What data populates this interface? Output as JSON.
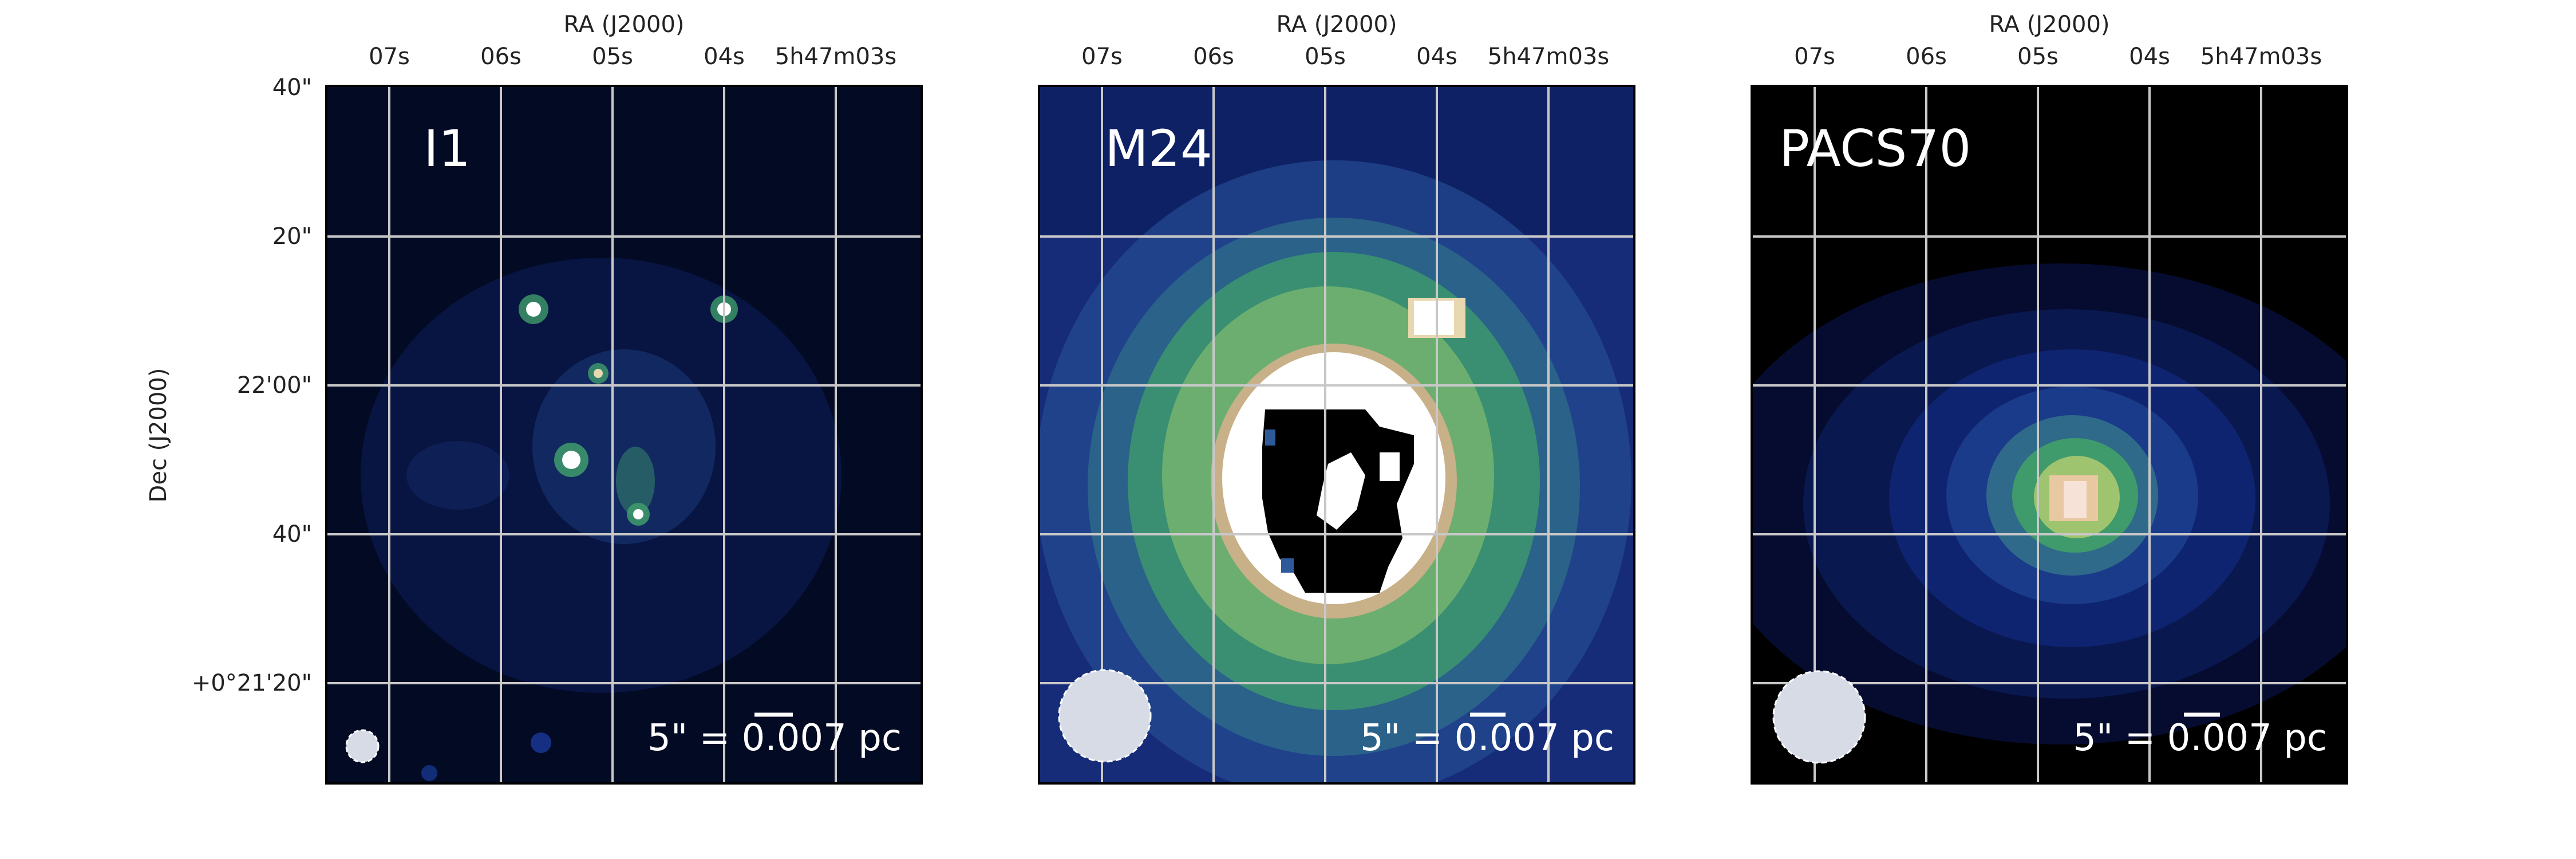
{
  "figure": {
    "colors": {
      "frame": "#000000",
      "grid": "#c8c8c8",
      "text_on_image": "#ffffff",
      "beam": "#d6dbe6"
    },
    "axes": {
      "ra_label": "RA (J2000)",
      "dec_label": "Dec (J2000)",
      "ra_ticks": [
        "07s",
        "06s",
        "05s",
        "04s",
        "5h47m03s"
      ],
      "dec_ticks": [
        "40\"",
        "20\"",
        "22'00\"",
        "40\"",
        "+0°21'20\""
      ]
    },
    "panels": [
      {
        "label": "I1",
        "scalebar_text": "5\" = 0.007 pc",
        "colormap": [
          "#000000",
          "#07103a",
          "#142a7a",
          "#2f5a9a",
          "#3f9b6c",
          "#9fc470",
          "#e8d8b0",
          "#ffffff"
        ]
      },
      {
        "label": "M24",
        "scalebar_text": "5\" = 0.007 pc",
        "colormap": [
          "#000000",
          "#07103a",
          "#142a7a",
          "#2f5a9a",
          "#3f9b6c",
          "#9fc470",
          "#e8d8b0",
          "#ffffff"
        ]
      },
      {
        "label": "PACS70",
        "scalebar_text": "5\" = 0.007 pc",
        "colormap": [
          "#000000",
          "#07103a",
          "#142a7a",
          "#2f5a9a",
          "#3f9b6c",
          "#9fc470",
          "#e8d8b0",
          "#ffffff"
        ]
      }
    ]
  }
}
